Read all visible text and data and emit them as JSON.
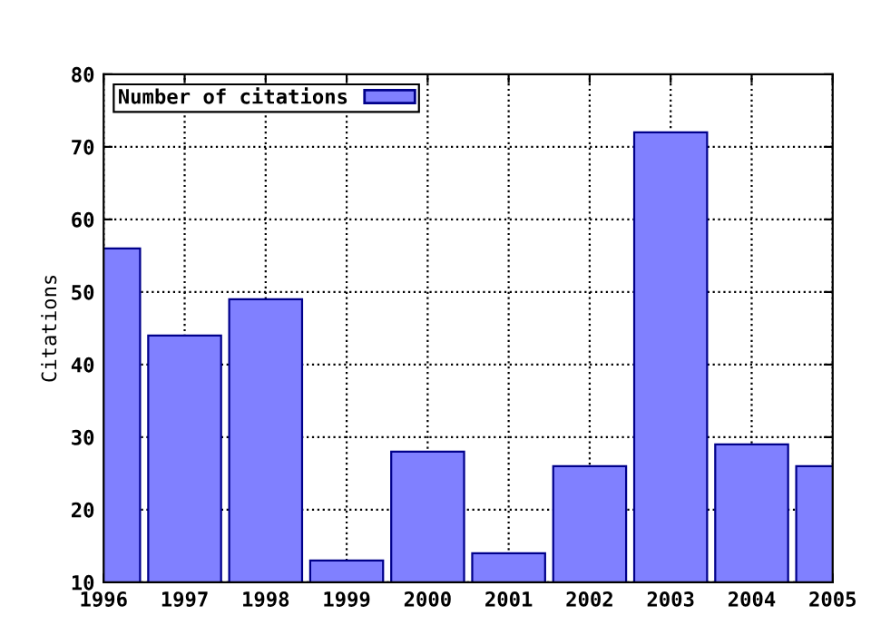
{
  "chart_data": {
    "type": "bar",
    "ylabel": "Citations",
    "x": [
      1996,
      1997,
      1998,
      1999,
      2000,
      2001,
      2002,
      2003,
      2004,
      2005
    ],
    "series": [
      {
        "name": "Number of citations",
        "color": "#8080ff",
        "values": [
          56,
          44,
          49,
          13,
          28,
          14,
          26,
          72,
          29,
          26
        ]
      }
    ],
    "xlim": [
      1996,
      2005
    ],
    "xticks": [
      1996,
      1997,
      1998,
      1999,
      2000,
      2001,
      2002,
      2003,
      2004,
      2005
    ],
    "ylim": [
      10,
      80
    ],
    "yticks": [
      10,
      20,
      30,
      40,
      50,
      60,
      70,
      80
    ],
    "grid": true,
    "legend": "top left"
  }
}
